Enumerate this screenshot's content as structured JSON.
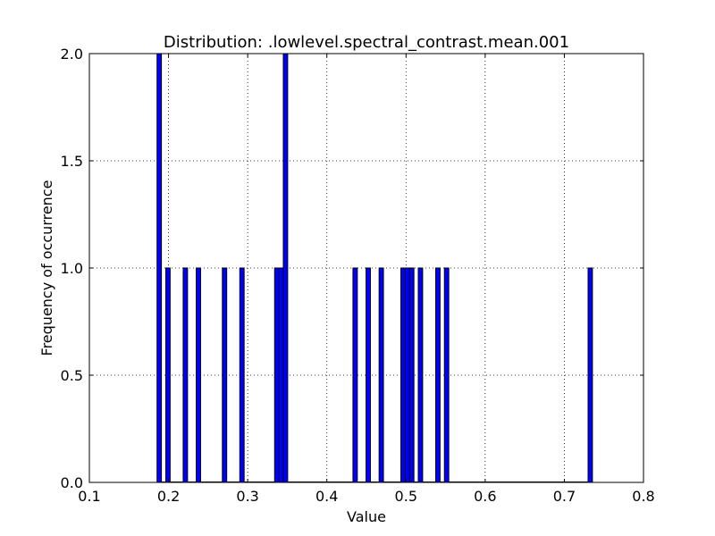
{
  "chart_data": {
    "type": "bar",
    "title": "Distribution: .lowlevel.spectral_contrast.mean.001",
    "xlabel": "Value",
    "ylabel": "Frequency of occurrence",
    "xlim": [
      0.1,
      0.8
    ],
    "ylim": [
      0.0,
      2.0
    ],
    "xticks": [
      "0.1",
      "0.2",
      "0.3",
      "0.4",
      "0.5",
      "0.6",
      "0.7",
      "0.8"
    ],
    "yticks": [
      "0.0",
      "0.5",
      "1.0",
      "1.5",
      "2.0"
    ],
    "grid": true,
    "bar_color": "#0000ff",
    "bin_width": 0.0055,
    "bins": [
      {
        "x": 0.1855,
        "count": 2
      },
      {
        "x": 0.1965,
        "count": 1
      },
      {
        "x": 0.2185,
        "count": 1
      },
      {
        "x": 0.235,
        "count": 1
      },
      {
        "x": 0.268,
        "count": 1
      },
      {
        "x": 0.29,
        "count": 1
      },
      {
        "x": 0.334,
        "count": 1
      },
      {
        "x": 0.3395,
        "count": 1
      },
      {
        "x": 0.345,
        "count": 2
      },
      {
        "x": 0.433,
        "count": 1
      },
      {
        "x": 0.4495,
        "count": 1
      },
      {
        "x": 0.466,
        "count": 1
      },
      {
        "x": 0.4935,
        "count": 1
      },
      {
        "x": 0.499,
        "count": 1
      },
      {
        "x": 0.5045,
        "count": 1
      },
      {
        "x": 0.5155,
        "count": 1
      },
      {
        "x": 0.5375,
        "count": 1
      },
      {
        "x": 0.5485,
        "count": 1
      },
      {
        "x": 0.73,
        "count": 1
      }
    ]
  }
}
